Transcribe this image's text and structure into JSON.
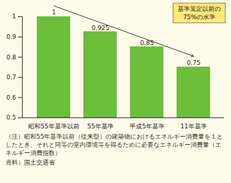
{
  "chart_data": {
    "type": "bar",
    "categories": [
      "昭和55年基準以前",
      "55年基準",
      "平成5年基準",
      "11年基準"
    ],
    "values": [
      1,
      0.925,
      0.85,
      0.75
    ],
    "color": "#6cbf3a",
    "ylim": [
      0.5,
      1
    ],
    "yticks": [
      0.5,
      0.6,
      0.7,
      0.8,
      0.9,
      1
    ],
    "data_labels": true,
    "annotation": "基準策定以前の\n75%の水準",
    "note": "（注）昭和55年基準以前（従来型）の建築物におけるエネルギー消費量を１としたとき、それと同等の室内環境等を得るために必要なエネルギー消費量（エネルギー消費指数）",
    "source": "資料）国土交通省"
  }
}
